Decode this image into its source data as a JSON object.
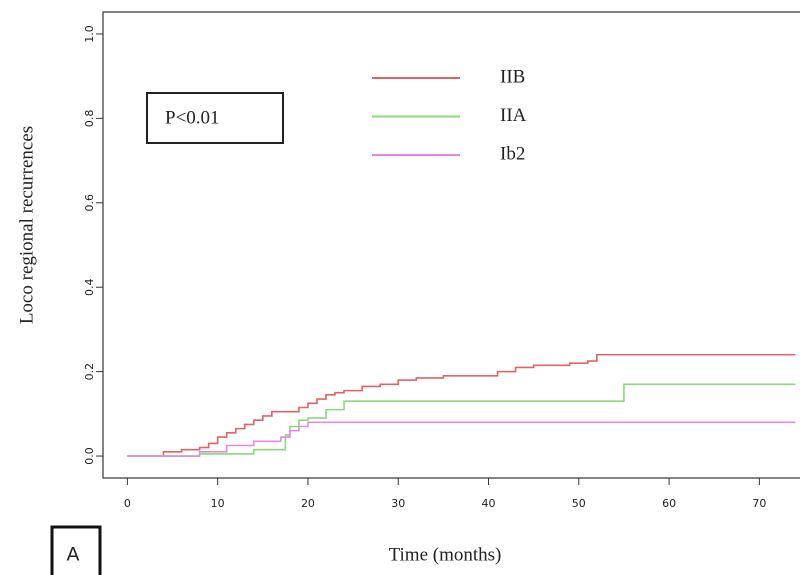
{
  "chart_data": {
    "type": "step",
    "x_label": "Time (months)",
    "y_label": "Loco regional recurrences",
    "annotations": [
      "P<0.01",
      "A"
    ],
    "xlim": [
      -2.7,
      74.5
    ],
    "ylim": [
      -0.052,
      1.052
    ],
    "xticks": [
      0,
      10,
      20,
      30,
      40,
      50,
      60,
      70
    ],
    "yticks": [
      {
        "value": 0,
        "label": "0.0"
      },
      {
        "value": 0.2,
        "label": "0.2"
      },
      {
        "value": 0.4,
        "label": "0.4"
      },
      {
        "value": 0.6,
        "label": "0.6"
      },
      {
        "value": 0.8,
        "label": "0.8"
      },
      {
        "value": 1,
        "label": "1.0"
      }
    ],
    "legend_position": "top",
    "series": [
      {
        "name": "IIB",
        "color": "#e06464",
        "x": [
          0,
          4,
          6,
          8,
          9,
          10,
          11,
          12,
          13,
          14,
          15,
          16,
          19,
          20,
          21,
          22,
          23,
          24,
          26,
          28,
          30,
          32,
          35,
          41,
          43,
          45,
          49,
          51,
          52,
          74
        ],
        "values": [
          0,
          0.01,
          0.015,
          0.02,
          0.03,
          0.045,
          0.055,
          0.065,
          0.075,
          0.085,
          0.095,
          0.105,
          0.115,
          0.125,
          0.135,
          0.145,
          0.15,
          0.155,
          0.165,
          0.17,
          0.18,
          0.185,
          0.19,
          0.2,
          0.21,
          0.215,
          0.22,
          0.225,
          0.24,
          0.24
        ]
      },
      {
        "name": "IIA",
        "color": "#8ad97a",
        "x": [
          0,
          8,
          14,
          17.5,
          18,
          19,
          20,
          22,
          24,
          55,
          74
        ],
        "values": [
          0,
          0.005,
          0.015,
          0.05,
          0.07,
          0.085,
          0.09,
          0.11,
          0.13,
          0.17,
          0.17
        ]
      },
      {
        "name": "Ib2",
        "color": "#e38ae3",
        "x": [
          0,
          8,
          11,
          14,
          17,
          18,
          19,
          20,
          74
        ],
        "values": [
          0,
          0.01,
          0.025,
          0.035,
          0.045,
          0.06,
          0.07,
          0.08,
          0.08
        ]
      }
    ]
  }
}
